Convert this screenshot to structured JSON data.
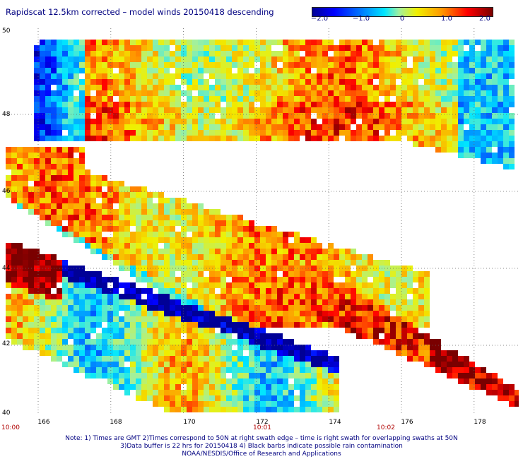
{
  "title": "Rapidscat 12.5km corrected – model winds 20150418 descending",
  "colorbar": {
    "ticks": [
      "−2.0",
      "−1.0",
      "0",
      "1.0",
      "2.0"
    ],
    "tick_values": [
      -2.0,
      -1.0,
      0,
      1.0,
      2.0
    ],
    "range": [
      -2.0,
      2.0
    ],
    "colors": [
      "#000096",
      "#0000ff",
      "#0080ff",
      "#00e6ff",
      "#a0f0a0",
      "#f0f000",
      "#ff9600",
      "#ff0000",
      "#7a0000"
    ]
  },
  "map": {
    "lon_range": [
      165,
      179
    ],
    "lat_range": [
      40,
      50
    ],
    "lat_labels": [
      "50",
      "48",
      "46",
      "44",
      "42",
      "40"
    ],
    "lon_labels": [
      "166",
      "168",
      "170",
      "172",
      "174",
      "176",
      "178"
    ],
    "time_labels": [
      {
        "text": "10:00",
        "lon": 164.98
      },
      {
        "text": "10:01",
        "lon": 172.0
      },
      {
        "text": "10:02",
        "lon": 175.9
      }
    ],
    "grid": "dotted"
  },
  "notes": [
    "Note: 1) Times are GMT 2)Times correspond to 50N at right swath edge – time is right swath for overlapping swaths at 50N",
    "3)Data buffer is 22 hrs for 20150418 4) Black barbs indicate possible rain contamination",
    "NOAA/NESDIS/Office of Research and Applications"
  ]
}
